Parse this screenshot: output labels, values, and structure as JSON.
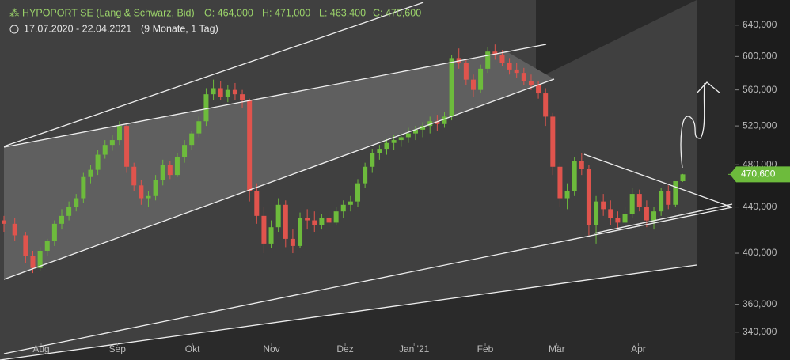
{
  "chart_data": {
    "type": "candlestick",
    "title": "HYPOPORT SE (Lang & Schwarz, Bid)",
    "ohlc_labels": [
      "O: 464,000",
      "H: 471,000",
      "L: 463,400",
      "C: 470,600"
    ],
    "date_range": "17.07.2020 - 22.04.2021",
    "period": "(9 Monate, 1 Tag)",
    "up_color": "#6dbb3c",
    "down_color": "#e0544d",
    "log_scale": true,
    "xlim": [
      -1.1,
      201.7
    ],
    "ylim": [
      321,
      674
    ],
    "xticks": [
      {
        "value": 10.3,
        "label": "Aug"
      },
      {
        "value": 31.4,
        "label": "Sep"
      },
      {
        "value": 52.2,
        "label": "Okt"
      },
      {
        "value": 74.1,
        "label": "Nov"
      },
      {
        "value": 94.5,
        "label": "Dez"
      },
      {
        "value": 113.6,
        "label": "Jan '21"
      },
      {
        "value": 133.3,
        "label": "Feb"
      },
      {
        "value": 153.1,
        "label": "Mär"
      },
      {
        "value": 175.7,
        "label": "Apr"
      }
    ],
    "yticks": [
      {
        "value": 340,
        "label": "340,000"
      },
      {
        "value": 360,
        "label": "360,000"
      },
      {
        "value": 400,
        "label": "400,000"
      },
      {
        "value": 440,
        "label": "440,000"
      },
      {
        "value": 480,
        "label": "480,000"
      },
      {
        "value": 520,
        "label": "520,000"
      },
      {
        "value": 560,
        "label": "560,000"
      },
      {
        "value": 600,
        "label": "600,000"
      },
      {
        "value": 640,
        "label": "640,000"
      }
    ],
    "last_price": {
      "value": 470.6,
      "label": "470,600"
    },
    "candles": [
      [
        0,
        428,
        432,
        418,
        425
      ],
      [
        3,
        425,
        430,
        410,
        415
      ],
      [
        6,
        415,
        418,
        392,
        398
      ],
      [
        8,
        398,
        402,
        384,
        388
      ],
      [
        10,
        388,
        405,
        386,
        402
      ],
      [
        12,
        402,
        412,
        398,
        410
      ],
      [
        14,
        410,
        428,
        406,
        425
      ],
      [
        16,
        425,
        438,
        420,
        432
      ],
      [
        18,
        432,
        445,
        428,
        440
      ],
      [
        20,
        440,
        452,
        436,
        448
      ],
      [
        22,
        448,
        472,
        444,
        468
      ],
      [
        24,
        468,
        480,
        462,
        475
      ],
      [
        26,
        475,
        495,
        470,
        490
      ],
      [
        28,
        490,
        505,
        486,
        500
      ],
      [
        30,
        500,
        510,
        494,
        505
      ],
      [
        32,
        505,
        525,
        500,
        520
      ],
      [
        34,
        520,
        522,
        472,
        478
      ],
      [
        36,
        478,
        482,
        455,
        460
      ],
      [
        38,
        460,
        465,
        442,
        448
      ],
      [
        40,
        448,
        455,
        440,
        450
      ],
      [
        42,
        450,
        470,
        446,
        465
      ],
      [
        44,
        465,
        485,
        460,
        480
      ],
      [
        46,
        480,
        484,
        466,
        470
      ],
      [
        48,
        470,
        492,
        468,
        488
      ],
      [
        50,
        488,
        505,
        482,
        500
      ],
      [
        52,
        500,
        515,
        495,
        512
      ],
      [
        54,
        512,
        530,
        508,
        525
      ],
      [
        56,
        525,
        562,
        520,
        555
      ],
      [
        58,
        555,
        572,
        548,
        562
      ],
      [
        60,
        562,
        570,
        548,
        552
      ],
      [
        62,
        552,
        566,
        546,
        560
      ],
      [
        64,
        560,
        568,
        548,
        555
      ],
      [
        66,
        555,
        560,
        540,
        548
      ],
      [
        68,
        548,
        550,
        445,
        455
      ],
      [
        70,
        455,
        462,
        425,
        432
      ],
      [
        72,
        432,
        440,
        400,
        408
      ],
      [
        74,
        408,
        428,
        404,
        422
      ],
      [
        76,
        422,
        448,
        418,
        442
      ],
      [
        78,
        442,
        446,
        405,
        412
      ],
      [
        80,
        412,
        420,
        400,
        406
      ],
      [
        82,
        406,
        435,
        404,
        430
      ],
      [
        84,
        430,
        438,
        420,
        428
      ],
      [
        86,
        428,
        436,
        418,
        424
      ],
      [
        88,
        424,
        434,
        420,
        430
      ],
      [
        90,
        430,
        436,
        422,
        426
      ],
      [
        92,
        426,
        440,
        424,
        436
      ],
      [
        94,
        436,
        446,
        430,
        442
      ],
      [
        96,
        442,
        450,
        436,
        445
      ],
      [
        98,
        445,
        466,
        440,
        462
      ],
      [
        100,
        462,
        482,
        458,
        478
      ],
      [
        102,
        478,
        496,
        472,
        492
      ],
      [
        104,
        492,
        500,
        485,
        496
      ],
      [
        106,
        496,
        506,
        490,
        502
      ],
      [
        108,
        502,
        510,
        495,
        505
      ],
      [
        110,
        505,
        512,
        498,
        508
      ],
      [
        112,
        508,
        518,
        502,
        512
      ],
      [
        114,
        512,
        520,
        505,
        516
      ],
      [
        116,
        516,
        524,
        508,
        520
      ],
      [
        118,
        520,
        530,
        512,
        525
      ],
      [
        120,
        525,
        532,
        515,
        522
      ],
      [
        122,
        522,
        535,
        518,
        530
      ],
      [
        124,
        530,
        602,
        526,
        598
      ],
      [
        126,
        598,
        610,
        585,
        592
      ],
      [
        128,
        592,
        596,
        566,
        572
      ],
      [
        130,
        572,
        578,
        552,
        560
      ],
      [
        132,
        560,
        590,
        556,
        585
      ],
      [
        134,
        585,
        612,
        580,
        606
      ],
      [
        136,
        606,
        615,
        596,
        602
      ],
      [
        138,
        602,
        608,
        588,
        592
      ],
      [
        140,
        592,
        598,
        578,
        584
      ],
      [
        142,
        584,
        592,
        574,
        580
      ],
      [
        144,
        580,
        586,
        566,
        570
      ],
      [
        146,
        570,
        578,
        560,
        566
      ],
      [
        148,
        566,
        570,
        550,
        556
      ],
      [
        150,
        556,
        562,
        520,
        530
      ],
      [
        152,
        530,
        534,
        470,
        478
      ],
      [
        154,
        478,
        482,
        440,
        448
      ],
      [
        156,
        448,
        462,
        438,
        455
      ],
      [
        158,
        455,
        488,
        450,
        484
      ],
      [
        160,
        484,
        492,
        470,
        476
      ],
      [
        162,
        476,
        480,
        415,
        424
      ],
      [
        164,
        424,
        450,
        408,
        445
      ],
      [
        166,
        445,
        452,
        432,
        438
      ],
      [
        168,
        438,
        446,
        424,
        430
      ],
      [
        170,
        430,
        436,
        420,
        426
      ],
      [
        172,
        426,
        440,
        422,
        434
      ],
      [
        174,
        434,
        458,
        430,
        452
      ],
      [
        176,
        452,
        456,
        436,
        440
      ],
      [
        178,
        440,
        446,
        422,
        428
      ],
      [
        180,
        428,
        440,
        420,
        436
      ],
      [
        182,
        436,
        458,
        432,
        455
      ],
      [
        184,
        455,
        460,
        438,
        442
      ],
      [
        186,
        442,
        464,
        440,
        464
      ],
      [
        188,
        464,
        471,
        463.4,
        470.6
      ]
    ]
  }
}
